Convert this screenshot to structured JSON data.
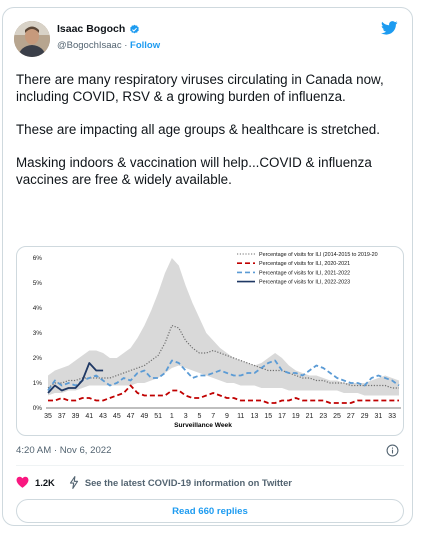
{
  "author": {
    "name": "Isaac Bogoch",
    "handle": "@BogochIsaac",
    "separator": "·",
    "follow_label": "Follow"
  },
  "tweet": {
    "paragraphs": [
      "There are many respiratory viruses circulating in Canada now, including COVID, RSV & a growing burden of influenza.",
      "These are impacting all age groups & healthcare is stretched.",
      "Masking indoors & vaccination will help...COVID & influenza vaccines are free & widely available."
    ],
    "timestamp": "4:20 AM · Nov 6, 2022"
  },
  "actions": {
    "likes": "1.2K",
    "covid_info": "See the latest COVID-19 information on Twitter",
    "replies_button": "Read 660 replies"
  },
  "colors": {
    "accent": "#1d9bf0",
    "heart": "#f91880",
    "band": "#d9d9d9",
    "hist_avg": "#6f6f6f",
    "s2020": "#c00000",
    "s2021": "#5b9bd5",
    "s2022": "#1f3864"
  },
  "icons": [
    "verified-badge-icon",
    "twitter-bird-icon",
    "info-icon",
    "heart-icon",
    "lightning-icon"
  ],
  "chart_data": {
    "type": "line",
    "xlabel": "Surveillance Week",
    "ylabel": "",
    "x_ticks": [
      "35",
      "37",
      "39",
      "41",
      "43",
      "45",
      "47",
      "49",
      "51",
      "1",
      "3",
      "5",
      "7",
      "9",
      "11",
      "13",
      "15",
      "17",
      "19",
      "21",
      "23",
      "25",
      "27",
      "29",
      "31",
      "33"
    ],
    "y_ticks": [
      "0%",
      "1%",
      "2%",
      "3%",
      "4%",
      "5%",
      "6%"
    ],
    "ylim": [
      0,
      6
    ],
    "weeks": [
      "35",
      "36",
      "37",
      "38",
      "39",
      "40",
      "41",
      "42",
      "43",
      "44",
      "45",
      "46",
      "47",
      "48",
      "49",
      "50",
      "51",
      "52",
      "1",
      "2",
      "3",
      "4",
      "5",
      "6",
      "7",
      "8",
      "9",
      "10",
      "11",
      "12",
      "13",
      "14",
      "15",
      "16",
      "17",
      "18",
      "19",
      "20",
      "21",
      "22",
      "23",
      "24",
      "25",
      "26",
      "27",
      "28",
      "29",
      "30",
      "31",
      "32",
      "33",
      "34"
    ],
    "band_low": [
      0.5,
      0.6,
      0.6,
      0.7,
      0.7,
      0.8,
      0.9,
      0.9,
      0.9,
      0.9,
      0.9,
      0.9,
      0.9,
      1.0,
      1.0,
      1.1,
      1.2,
      1.4,
      1.6,
      1.7,
      1.6,
      1.5,
      1.4,
      1.3,
      1.2,
      1.1,
      1.0,
      1.0,
      0.9,
      0.9,
      0.9,
      0.8,
      0.8,
      0.8,
      0.8,
      0.7,
      0.7,
      0.7,
      0.7,
      0.7,
      0.7,
      0.7,
      0.7,
      0.6,
      0.6,
      0.6,
      0.5,
      0.5,
      0.5,
      0.5,
      0.5,
      0.5
    ],
    "band_high": [
      1.3,
      1.5,
      1.6,
      1.7,
      1.9,
      2.1,
      2.3,
      2.3,
      2.2,
      2.0,
      2.0,
      2.2,
      2.4,
      2.8,
      3.3,
      3.9,
      4.6,
      5.4,
      6.0,
      5.7,
      4.9,
      4.2,
      3.6,
      3.0,
      2.7,
      2.4,
      2.2,
      2.0,
      1.9,
      1.8,
      1.7,
      1.8,
      2.0,
      2.2,
      2.0,
      1.7,
      1.5,
      1.4,
      1.3,
      1.3,
      1.2,
      1.1,
      1.1,
      1.0,
      1.0,
      1.0,
      1.0,
      1.1,
      1.2,
      1.3,
      1.2,
      1.1
    ],
    "legend_position": "top-right",
    "series": [
      {
        "name": "Percentage of visits for ILI (2014-2015 to 2019-20",
        "style": "dotted",
        "values": [
          0.8,
          1.0,
          1.0,
          1.1,
          1.1,
          1.2,
          1.2,
          1.2,
          1.2,
          1.2,
          1.3,
          1.4,
          1.5,
          1.6,
          1.7,
          1.9,
          2.1,
          2.6,
          3.3,
          3.2,
          2.7,
          2.4,
          2.2,
          2.2,
          2.3,
          2.2,
          2.1,
          2.0,
          1.9,
          1.8,
          1.7,
          1.6,
          1.5,
          1.5,
          1.5,
          1.4,
          1.3,
          1.2,
          1.2,
          1.1,
          1.1,
          1.0,
          1.0,
          1.0,
          0.9,
          0.9,
          0.9,
          0.9,
          0.9,
          0.9,
          0.8,
          0.8
        ]
      },
      {
        "name": "Percentage of visits for ILI, 2020-2021",
        "style": "dashed",
        "values": [
          0.3,
          0.3,
          0.4,
          0.3,
          0.3,
          0.4,
          0.4,
          0.3,
          0.3,
          0.4,
          0.5,
          0.6,
          0.9,
          0.6,
          0.5,
          0.5,
          0.5,
          0.5,
          0.7,
          0.7,
          0.5,
          0.4,
          0.4,
          0.5,
          0.6,
          0.5,
          0.4,
          0.4,
          0.3,
          0.3,
          0.3,
          0.3,
          0.2,
          0.2,
          0.3,
          0.3,
          0.4,
          0.3,
          0.3,
          0.3,
          0.3,
          0.2,
          0.2,
          0.2,
          0.2,
          0.3,
          0.3,
          0.3,
          0.3,
          0.3,
          0.3,
          0.3
        ]
      },
      {
        "name": "Percentage of visits for ILI, 2021-2022",
        "style": "dashed",
        "values": [
          0.7,
          1.1,
          0.9,
          1.0,
          0.9,
          1.1,
          1.2,
          1.3,
          1.1,
          0.9,
          1.0,
          1.2,
          1.1,
          1.4,
          1.5,
          1.2,
          1.2,
          1.4,
          1.9,
          1.8,
          1.5,
          1.2,
          1.3,
          1.3,
          1.4,
          1.5,
          1.4,
          1.3,
          1.3,
          1.4,
          1.4,
          1.6,
          1.8,
          1.9,
          1.5,
          1.4,
          1.4,
          1.3,
          1.5,
          1.7,
          1.6,
          1.4,
          1.2,
          1.1,
          1.0,
          1.0,
          0.9,
          1.2,
          1.3,
          1.2,
          1.1,
          0.9
        ]
      },
      {
        "name": "Percentage of visits for ILI, 2022-2023",
        "style": "solid",
        "values": [
          0.6,
          0.9,
          0.7,
          0.8,
          0.8,
          1.1,
          1.8,
          1.5,
          1.5
        ]
      }
    ]
  }
}
